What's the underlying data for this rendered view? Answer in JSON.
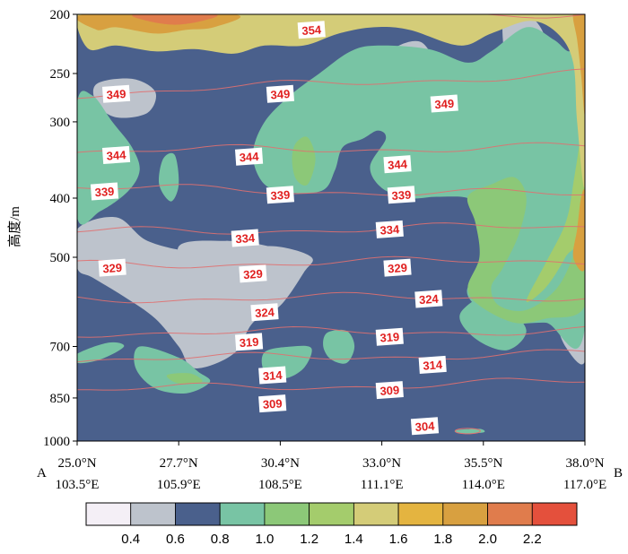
{
  "chart_data": {
    "type": "heatmap",
    "subtype": "vertical cross-section, filled contours with overlaid isolines",
    "ylabel": "高度/m",
    "xlabel": "",
    "y_scale": "log-pressure",
    "ylim": [
      1000,
      200
    ],
    "y_ticks": [
      "200",
      "250",
      "300",
      "400",
      "500",
      "700",
      "850",
      "1000"
    ],
    "y_tick_values": [
      200,
      250,
      300,
      400,
      500,
      700,
      850,
      1000
    ],
    "x_ticks": [
      {
        "lat": "25.0°N",
        "lon": "103.5°E"
      },
      {
        "lat": "27.7°N",
        "lon": "105.9°E"
      },
      {
        "lat": "30.4°N",
        "lon": "108.5°E"
      },
      {
        "lat": "33.0°N",
        "lon": "111.1°E"
      },
      {
        "lat": "35.5°N",
        "lon": "114.0°E"
      },
      {
        "lat": "38.0°N",
        "lon": "117.0°E"
      }
    ],
    "endpoints": {
      "start": "A",
      "end": "B"
    },
    "colorbar": {
      "ticks": [
        "0.4",
        "0.6",
        "0.8",
        "1.0",
        "1.2",
        "1.4",
        "1.6",
        "1.8",
        "2.0",
        "2.2"
      ],
      "colors": [
        "#f4eff6",
        "#bdc3cc",
        "#4a608c",
        "#78c4a4",
        "#8cc878",
        "#a4cc6c",
        "#d4cc78",
        "#e4b440",
        "#d8a040",
        "#e07c4c",
        "#e4503c"
      ]
    },
    "isolines": {
      "color": "#e07070",
      "levels": [
        {
          "value": 354,
          "label": "354",
          "p_left": 195,
          "p_right": 200
        },
        {
          "value": 349,
          "label": "349",
          "p_left": 270,
          "p_right": 250
        },
        {
          "value": 344,
          "label": "344",
          "p_left": 335,
          "p_right": 330
        },
        {
          "value": 339,
          "label": "339",
          "p_left": 385,
          "p_right": 395
        },
        {
          "value": 334,
          "label": "334",
          "p_left": 455,
          "p_right": 445
        },
        {
          "value": 329,
          "label": "329",
          "p_left": 515,
          "p_right": 505
        },
        {
          "value": 324,
          "label": "324",
          "p_left": 585,
          "p_right": 580
        },
        {
          "value": 319,
          "label": "319",
          "p_left": 665,
          "p_right": 660
        },
        {
          "value": 314,
          "label": "314",
          "p_left": 735,
          "p_right": 720
        },
        {
          "value": 309,
          "label": "309",
          "p_left": 825,
          "p_right": 800
        },
        {
          "value": 304,
          "label": "304",
          "p_left": null,
          "p_right": null
        }
      ],
      "labels_at": [
        {
          "text": "354",
          "lat": 31.0,
          "p": 212
        },
        {
          "text": "349",
          "lat": 26.0,
          "p": 270
        },
        {
          "text": "349",
          "lat": 30.2,
          "p": 270
        },
        {
          "text": "349",
          "lat": 34.4,
          "p": 280
        },
        {
          "text": "344",
          "lat": 26.0,
          "p": 340
        },
        {
          "text": "344",
          "lat": 29.4,
          "p": 342
        },
        {
          "text": "344",
          "lat": 33.2,
          "p": 352
        },
        {
          "text": "339",
          "lat": 25.7,
          "p": 390
        },
        {
          "text": "339",
          "lat": 30.2,
          "p": 395
        },
        {
          "text": "339",
          "lat": 33.3,
          "p": 395
        },
        {
          "text": "334",
          "lat": 29.3,
          "p": 465
        },
        {
          "text": "334",
          "lat": 33.0,
          "p": 450
        },
        {
          "text": "329",
          "lat": 25.9,
          "p": 520
        },
        {
          "text": "329",
          "lat": 29.5,
          "p": 532
        },
        {
          "text": "329",
          "lat": 33.2,
          "p": 520
        },
        {
          "text": "324",
          "lat": 29.8,
          "p": 615
        },
        {
          "text": "324",
          "lat": 34.0,
          "p": 585
        },
        {
          "text": "319",
          "lat": 29.4,
          "p": 688
        },
        {
          "text": "319",
          "lat": 33.0,
          "p": 675
        },
        {
          "text": "314",
          "lat": 30.0,
          "p": 780
        },
        {
          "text": "314",
          "lat": 34.1,
          "p": 750
        },
        {
          "text": "309",
          "lat": 30.0,
          "p": 868
        },
        {
          "text": "309",
          "lat": 33.0,
          "p": 825
        },
        {
          "text": "304",
          "lat": 33.9,
          "p": 945
        }
      ]
    },
    "regions": [
      {
        "level": "0.6",
        "desc": "background field"
      },
      {
        "level": "0.4",
        "poly": [
          [
            25.0,
            450
          ],
          [
            26.0,
            430
          ],
          [
            26.8,
            470
          ],
          [
            28.0,
            490
          ],
          [
            29.0,
            485
          ],
          [
            30.1,
            480
          ],
          [
            31.0,
            500
          ],
          [
            30.8,
            530
          ],
          [
            30.2,
            600
          ],
          [
            29.5,
            640
          ],
          [
            29.0,
            720
          ],
          [
            28.0,
            760
          ],
          [
            27.6,
            700
          ],
          [
            27.0,
            630
          ],
          [
            26.2,
            580
          ],
          [
            25.4,
            540
          ],
          [
            25.0,
            520
          ]
        ]
      },
      {
        "level": "0.4",
        "poly": [
          [
            27.6,
            480
          ],
          [
            28.8,
            470
          ],
          [
            29.8,
            478
          ],
          [
            30.5,
            500
          ],
          [
            30.3,
            560
          ],
          [
            29.6,
            600
          ],
          [
            28.8,
            590
          ],
          [
            28.0,
            560
          ]
        ]
      },
      {
        "level": "0.4",
        "poly": [
          [
            32.7,
            255
          ],
          [
            33.0,
            230
          ],
          [
            33.8,
            222
          ],
          [
            34.2,
            250
          ],
          [
            34.0,
            290
          ],
          [
            33.5,
            305
          ],
          [
            33.0,
            290
          ]
        ]
      },
      {
        "level": "0.4",
        "poly": [
          [
            35.9,
            205
          ],
          [
            36.5,
            200
          ],
          [
            37.0,
            220
          ],
          [
            37.2,
            280
          ],
          [
            37.0,
            350
          ],
          [
            36.6,
            380
          ],
          [
            36.3,
            340
          ],
          [
            36.1,
            280
          ]
        ]
      },
      {
        "level": "0.4",
        "poly": [
          [
            25.5,
            260
          ],
          [
            26.4,
            255
          ],
          [
            27.0,
            268
          ],
          [
            26.8,
            290
          ],
          [
            26.0,
            295
          ],
          [
            25.5,
            280
          ]
        ]
      },
      {
        "level": "0.4",
        "poly": [
          [
            37.0,
            560
          ],
          [
            38.0,
            555
          ],
          [
            38.0,
            740
          ],
          [
            37.5,
            700
          ],
          [
            37.2,
            620
          ]
        ]
      },
      {
        "level": "0.8",
        "poly": [
          [
            25.0,
            200
          ],
          [
            38.0,
            200
          ],
          [
            38.0,
            200
          ],
          [
            37.9,
            220
          ],
          [
            37.6,
            230
          ],
          [
            37.2,
            220
          ],
          [
            36.5,
            210
          ],
          [
            35.6,
            230
          ],
          [
            35.0,
            240
          ],
          [
            34.0,
            228
          ],
          [
            32.7,
            225
          ],
          [
            32.0,
            230
          ],
          [
            31.2,
            250
          ],
          [
            30.5,
            270
          ],
          [
            29.8,
            300
          ],
          [
            29.5,
            340
          ],
          [
            29.8,
            380
          ],
          [
            30.5,
            392
          ],
          [
            31.3,
            388
          ],
          [
            31.6,
            360
          ],
          [
            31.8,
            330
          ],
          [
            32.3,
            320
          ],
          [
            32.7,
            310
          ],
          [
            32.9,
            320
          ],
          [
            32.5,
            355
          ],
          [
            32.8,
            385
          ],
          [
            33.5,
            400
          ],
          [
            34.2,
            398
          ],
          [
            35.0,
            400
          ],
          [
            35.2,
            420
          ],
          [
            35.5,
            440
          ],
          [
            36.0,
            480
          ],
          [
            35.6,
            520
          ],
          [
            35.0,
            560
          ],
          [
            35.2,
            600
          ],
          [
            36.0,
            640
          ],
          [
            37.0,
            640
          ],
          [
            38.0,
            650
          ],
          [
            38.0,
            200
          ]
        ]
      },
      {
        "level": "0.8",
        "poly": [
          [
            25.0,
            280
          ],
          [
            25.4,
            272
          ],
          [
            25.9,
            300
          ],
          [
            26.4,
            330
          ],
          [
            26.6,
            360
          ],
          [
            26.3,
            390
          ],
          [
            25.6,
            420
          ],
          [
            25.0,
            430
          ]
        ]
      },
      {
        "level": "0.8",
        "poly": [
          [
            26.6,
            700
          ],
          [
            27.6,
            730
          ],
          [
            28.1,
            770
          ],
          [
            28.4,
            800
          ],
          [
            27.8,
            835
          ],
          [
            27.0,
            820
          ],
          [
            26.5,
            760
          ]
        ]
      },
      {
        "level": "0.8",
        "poly": [
          [
            25.0,
            720
          ],
          [
            25.8,
            690
          ],
          [
            26.2,
            700
          ],
          [
            25.6,
            735
          ],
          [
            25.0,
            745
          ]
        ]
      },
      {
        "level": "0.8",
        "poly": [
          [
            29.8,
            715
          ],
          [
            30.5,
            700
          ],
          [
            31.0,
            705
          ],
          [
            30.8,
            760
          ],
          [
            30.3,
            790
          ],
          [
            29.8,
            770
          ]
        ]
      },
      {
        "level": "0.8",
        "poly": [
          [
            31.4,
            665
          ],
          [
            31.9,
            660
          ],
          [
            32.1,
            700
          ],
          [
            31.9,
            745
          ],
          [
            31.5,
            735
          ],
          [
            31.3,
            700
          ]
        ]
      },
      {
        "level": "0.8",
        "poly": [
          [
            27.2,
            345
          ],
          [
            27.5,
            340
          ],
          [
            27.6,
            380
          ],
          [
            27.4,
            405
          ],
          [
            27.1,
            380
          ]
        ]
      },
      {
        "level": "0.8",
        "poly": [
          [
            34.7,
            960
          ],
          [
            35.3,
            955
          ],
          [
            35.4,
            968
          ],
          [
            34.8,
            972
          ]
        ]
      },
      {
        "level": "0.8",
        "poly": [
          [
            34.8,
            620
          ],
          [
            35.6,
            570
          ],
          [
            36.0,
            600
          ],
          [
            36.5,
            660
          ],
          [
            36.0,
            710
          ],
          [
            35.2,
            680
          ]
        ]
      },
      {
        "level": "1.0",
        "poly": [
          [
            30.6,
            325
          ],
          [
            30.9,
            318
          ],
          [
            31.1,
            345
          ],
          [
            30.9,
            380
          ],
          [
            30.6,
            372
          ],
          [
            30.5,
            345
          ]
        ]
      },
      {
        "level": "1.0",
        "poly": [
          [
            27.3,
            780
          ],
          [
            27.9,
            775
          ],
          [
            28.2,
            800
          ],
          [
            27.6,
            805
          ]
        ]
      },
      {
        "level": "1.0",
        "poly": [
          [
            35.0,
            398
          ],
          [
            35.6,
            380
          ],
          [
            36.2,
            370
          ],
          [
            36.5,
            400
          ],
          [
            36.3,
            460
          ],
          [
            35.9,
            520
          ],
          [
            35.6,
            560
          ],
          [
            35.8,
            600
          ],
          [
            36.5,
            610
          ],
          [
            37.3,
            560
          ],
          [
            37.8,
            480
          ],
          [
            38.0,
            440
          ],
          [
            38.0,
            600
          ],
          [
            37.0,
            630
          ],
          [
            36.2,
            640
          ],
          [
            35.3,
            600
          ],
          [
            35.0,
            560
          ],
          [
            35.3,
            500
          ],
          [
            35.2,
            440
          ]
        ]
      },
      {
        "level": "1.2",
        "poly": [
          [
            37.8,
            230
          ],
          [
            38.0,
            220
          ],
          [
            38.0,
            430
          ],
          [
            37.5,
            500
          ],
          [
            37.0,
            560
          ],
          [
            36.5,
            590
          ],
          [
            37.0,
            510
          ],
          [
            37.5,
            440
          ],
          [
            37.7,
            380
          ],
          [
            37.9,
            300
          ]
        ]
      },
      {
        "level": "1.4",
        "poly": [
          [
            25.0,
            205
          ],
          [
            25.5,
            200
          ],
          [
            38.0,
            200
          ],
          [
            38.0,
            380
          ],
          [
            37.8,
            300
          ],
          [
            37.7,
            240
          ],
          [
            37.3,
            215
          ],
          [
            36.6,
            205
          ],
          [
            35.6,
            215
          ],
          [
            34.8,
            225
          ],
          [
            33.5,
            212
          ],
          [
            32.6,
            210
          ],
          [
            31.7,
            215
          ],
          [
            30.8,
            225
          ],
          [
            29.8,
            225
          ],
          [
            29.0,
            232
          ],
          [
            28.0,
            228
          ],
          [
            27.0,
            230
          ],
          [
            26.0,
            225
          ],
          [
            25.3,
            228
          ]
        ]
      },
      {
        "level": "1.8",
        "poly": [
          [
            25.2,
            200
          ],
          [
            29.0,
            200
          ],
          [
            28.5,
            210
          ],
          [
            27.8,
            212
          ],
          [
            27.0,
            215
          ],
          [
            26.0,
            210
          ],
          [
            25.5,
            212
          ]
        ]
      },
      {
        "level": "1.8",
        "poly": [
          [
            37.7,
            200
          ],
          [
            38.0,
            200
          ],
          [
            38.0,
            290
          ],
          [
            37.9,
            250
          ],
          [
            37.8,
            220
          ]
        ]
      },
      {
        "level": "1.8",
        "poly": [
          [
            37.9,
            400
          ],
          [
            38.0,
            395
          ],
          [
            38.0,
            520
          ],
          [
            37.7,
            500
          ],
          [
            37.8,
            450
          ]
        ]
      },
      {
        "level": "2.0",
        "poly": [
          [
            26.5,
            200
          ],
          [
            28.5,
            200
          ],
          [
            28.2,
            205
          ],
          [
            27.5,
            208
          ],
          [
            26.8,
            205
          ]
        ]
      }
    ]
  }
}
